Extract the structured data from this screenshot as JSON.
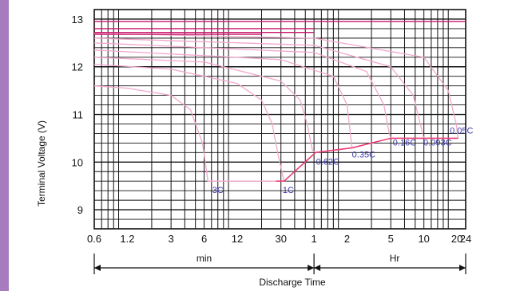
{
  "chart_data": {
    "type": "line",
    "ylabel": "Terminal Voltage  (V)",
    "xlabel": "Discharge Time",
    "ylim": [
      8.6,
      13.2
    ],
    "y_ticks": [
      "13",
      "12",
      "11",
      "10",
      "9"
    ],
    "y_tick_values": [
      13,
      12,
      11,
      10,
      9
    ],
    "x_ticks": [
      "0.6",
      "1.2",
      "3",
      "6",
      "12",
      "30",
      "1",
      "2",
      "5",
      "10",
      "20",
      "24"
    ],
    "x_tick_minutes": [
      0.6,
      1.2,
      3,
      6,
      12,
      30,
      60,
      120,
      300,
      600,
      1200,
      1440
    ],
    "x_units": [
      "min",
      "Hr"
    ],
    "grid": true,
    "series": [
      {
        "name": "3C",
        "points": [
          [
            0.6,
            11.6
          ],
          [
            1.2,
            11.55
          ],
          [
            3,
            11.4
          ],
          [
            4.5,
            11.1
          ],
          [
            5.8,
            10.4
          ],
          [
            6.5,
            9.6
          ],
          [
            27,
            9.6
          ]
        ]
      },
      {
        "name": "1C",
        "points": [
          [
            0.6,
            12.05
          ],
          [
            3,
            11.95
          ],
          [
            12,
            11.65
          ],
          [
            20,
            11.3
          ],
          [
            25,
            10.8
          ],
          [
            28,
            10.2
          ],
          [
            32,
            9.6
          ]
        ]
      },
      {
        "name": "0.62C",
        "points": [
          [
            0.6,
            12.2
          ],
          [
            6,
            12.1
          ],
          [
            30,
            11.7
          ],
          [
            45,
            11.3
          ],
          [
            52,
            10.8
          ],
          [
            58,
            10.25
          ],
          [
            62,
            10.2
          ]
        ]
      },
      {
        "name": "0.35C",
        "points": [
          [
            0.6,
            12.35
          ],
          [
            30,
            12.15
          ],
          [
            90,
            11.8
          ],
          [
            120,
            11.2
          ],
          [
            130,
            10.5
          ],
          [
            133,
            10.3
          ]
        ]
      },
      {
        "name": "0.16C",
        "points": [
          [
            0.6,
            12.5
          ],
          [
            60,
            12.3
          ],
          [
            180,
            11.9
          ],
          [
            260,
            11.2
          ],
          [
            290,
            10.6
          ],
          [
            300,
            10.5
          ]
        ]
      },
      {
        "name": "0.093C",
        "points": [
          [
            0.6,
            12.6
          ],
          [
            60,
            12.45
          ],
          [
            300,
            12.0
          ],
          [
            480,
            11.4
          ],
          [
            570,
            10.7
          ],
          [
            600,
            10.5
          ]
        ]
      },
      {
        "name": "0.05C",
        "points": [
          [
            0.6,
            12.7
          ],
          [
            60,
            12.6
          ],
          [
            600,
            12.2
          ],
          [
            1000,
            11.5
          ],
          [
            1180,
            10.8
          ],
          [
            1230,
            10.5
          ]
        ]
      }
    ],
    "end_voltage_line": [
      [
        27,
        9.6
      ],
      [
        32,
        9.6
      ],
      [
        62,
        10.2
      ],
      [
        133,
        10.3
      ],
      [
        300,
        10.5
      ],
      [
        1230,
        10.5
      ]
    ],
    "colors": {
      "curve": "#f1a8cc",
      "endline": "#ec3e74",
      "top": "#c8176a",
      "grid": "#111111",
      "label": "#3a3aa8",
      "sidebar": "#a77cbf"
    }
  }
}
